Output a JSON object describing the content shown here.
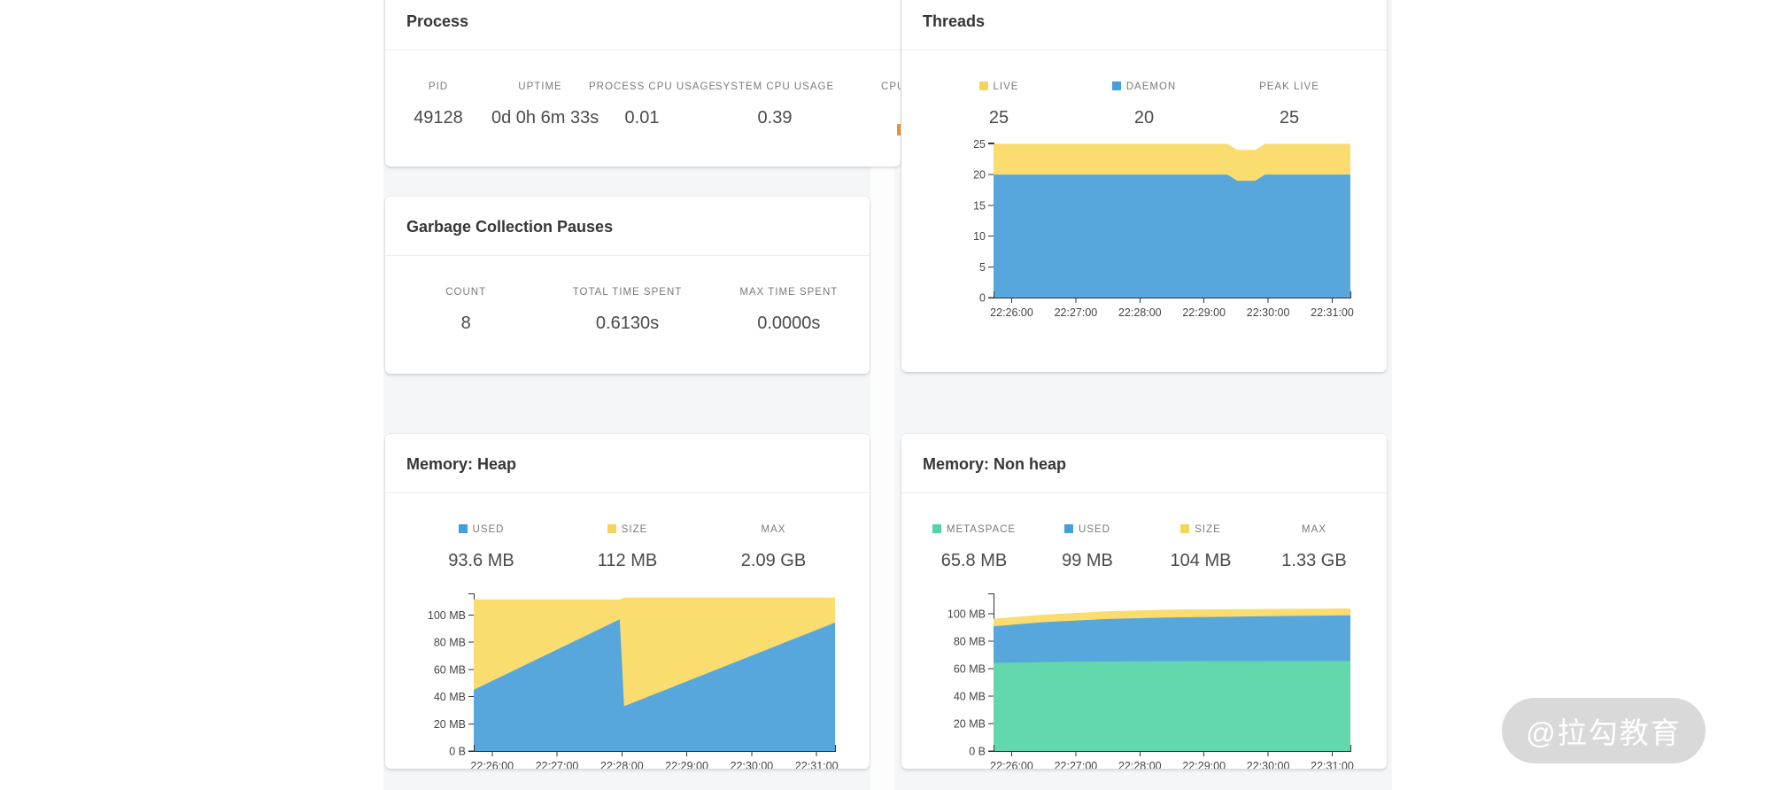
{
  "watermark": "@拉勾教育",
  "process": {
    "title": "Process",
    "stats": [
      {
        "label": "PID",
        "value": "49128"
      },
      {
        "label": "UPTIME",
        "value": "0d 0h 6m 33s"
      },
      {
        "label": "PROCESS CPU USAGE",
        "value": "0.01"
      },
      {
        "label": "SYSTEM CPU USAGE",
        "value": "0.39"
      },
      {
        "label": "CPUS",
        "value": ""
      }
    ]
  },
  "gc": {
    "title": "Garbage Collection Pauses",
    "stats": [
      {
        "label": "COUNT",
        "value": "8"
      },
      {
        "label": "TOTAL TIME SPENT",
        "value": "0.6130s"
      },
      {
        "label": "MAX TIME SPENT",
        "value": "0.0000s"
      }
    ]
  },
  "threads": {
    "title": "Threads",
    "stats": [
      {
        "label": "LIVE",
        "value": "25",
        "marker": "#f5d45c"
      },
      {
        "label": "DAEMON",
        "value": "20",
        "marker": "#459fd8"
      },
      {
        "label": "PEAK LIVE",
        "value": "25"
      }
    ]
  },
  "heap": {
    "title": "Memory: Heap",
    "stats": [
      {
        "label": "USED",
        "value": "93.6 MB",
        "marker": "#459fd8"
      },
      {
        "label": "SIZE",
        "value": "112 MB",
        "marker": "#f5d45c"
      },
      {
        "label": "MAX",
        "value": "2.09 GB"
      }
    ]
  },
  "nonheap": {
    "title": "Memory: Non heap",
    "stats": [
      {
        "label": "METASPACE",
        "value": "65.8 MB",
        "marker": "#53d4a8"
      },
      {
        "label": "USED",
        "value": "99 MB",
        "marker": "#459fd8"
      },
      {
        "label": "SIZE",
        "value": "104 MB",
        "marker": "#f5d45c"
      },
      {
        "label": "MAX",
        "value": "1.33 GB"
      }
    ]
  },
  "chart_data": [
    {
      "id": "threads",
      "type": "area",
      "title": "Threads",
      "x_domain": [
        "22:25:43",
        "22:31:17"
      ],
      "x_ticks": [
        "22:26:00",
        "22:27:00",
        "22:28:00",
        "22:29:00",
        "22:30:00",
        "22:31:00"
      ],
      "y_ticks": [
        {
          "label": "0",
          "v": 0
        },
        {
          "label": "5",
          "v": 5
        },
        {
          "label": "10",
          "v": 10
        },
        {
          "label": "15",
          "v": 15
        },
        {
          "label": "20",
          "v": 20
        },
        {
          "label": "25",
          "v": 25
        }
      ],
      "ylim": [
        0,
        25.2
      ],
      "grid": false,
      "legend_position": "top",
      "series": [
        {
          "name": "LIVE",
          "color": "#fbdc6f",
          "points": [
            [
              "22:25:43",
              25
            ],
            [
              "22:29:22",
              25
            ],
            [
              "22:29:31",
              24
            ],
            [
              "22:29:48",
              24
            ],
            [
              "22:29:57",
              25
            ],
            [
              "22:31:17",
              25
            ]
          ]
        },
        {
          "name": "DAEMON",
          "color": "#57a7dc",
          "points": [
            [
              "22:25:43",
              20
            ],
            [
              "22:29:22",
              20
            ],
            [
              "22:29:31",
              19
            ],
            [
              "22:29:48",
              19
            ],
            [
              "22:29:57",
              20
            ],
            [
              "22:31:17",
              20
            ]
          ]
        }
      ]
    },
    {
      "id": "heap",
      "type": "area",
      "title": "Memory: Heap",
      "x_domain": [
        "22:25:43",
        "22:31:17"
      ],
      "x_ticks": [
        "22:26:00",
        "22:27:00",
        "22:28:00",
        "22:29:00",
        "22:30:00",
        "22:31:00"
      ],
      "y_ticks": [
        {
          "label": "0 B",
          "v": 0
        },
        {
          "label": "20 MB",
          "v": 20
        },
        {
          "label": "40 MB",
          "v": 40
        },
        {
          "label": "60 MB",
          "v": 60
        },
        {
          "label": "80 MB",
          "v": 80
        },
        {
          "label": "100 MB",
          "v": 100
        }
      ],
      "ylim": [
        0,
        116
      ],
      "grid": false,
      "legend_position": "top",
      "series": [
        {
          "name": "SIZE",
          "color": "#fbdc6f",
          "points": [
            [
              "22:25:43",
              111.5
            ],
            [
              "22:27:58",
              111.5
            ],
            [
              "22:28:02",
              113
            ],
            [
              "22:31:17",
              113
            ]
          ]
        },
        {
          "name": "USED",
          "color": "#57a7dc",
          "points": [
            [
              "22:25:43",
              45
            ],
            [
              "22:27:58",
              97
            ],
            [
              "22:28:02",
              33
            ],
            [
              "22:31:17",
              94.5
            ]
          ]
        }
      ]
    },
    {
      "id": "nonheap",
      "type": "area",
      "title": "Memory: Non heap",
      "x_domain": [
        "22:25:43",
        "22:31:17"
      ],
      "x_ticks": [
        "22:26:00",
        "22:27:00",
        "22:28:00",
        "22:29:00",
        "22:30:00",
        "22:31:00"
      ],
      "y_ticks": [
        {
          "label": "0 B",
          "v": 0
        },
        {
          "label": "20 MB",
          "v": 20
        },
        {
          "label": "40 MB",
          "v": 40
        },
        {
          "label": "60 MB",
          "v": 60
        },
        {
          "label": "80 MB",
          "v": 80
        },
        {
          "label": "100 MB",
          "v": 100
        }
      ],
      "ylim": [
        0,
        115
      ],
      "grid": false,
      "legend_position": "top",
      "series": [
        {
          "name": "SIZE",
          "color": "#fbdc6f",
          "points": [
            [
              "22:25:43",
              96.5
            ],
            [
              "22:26:30",
              99.5
            ],
            [
              "22:27:30",
              102
            ],
            [
              "22:28:30",
              103.2
            ],
            [
              "22:31:17",
              104
            ]
          ]
        },
        {
          "name": "USED",
          "color": "#57a7dc",
          "points": [
            [
              "22:25:43",
              91
            ],
            [
              "22:26:30",
              94
            ],
            [
              "22:27:30",
              96.3
            ],
            [
              "22:28:30",
              97.5
            ],
            [
              "22:30:00",
              98.3
            ],
            [
              "22:31:17",
              99
            ]
          ]
        },
        {
          "name": "METASPACE",
          "color": "#63d8ad",
          "points": [
            [
              "22:25:43",
              64.3
            ],
            [
              "22:27:00",
              65.2
            ],
            [
              "22:28:00",
              65.5
            ],
            [
              "22:31:17",
              65.8
            ]
          ]
        }
      ]
    }
  ]
}
